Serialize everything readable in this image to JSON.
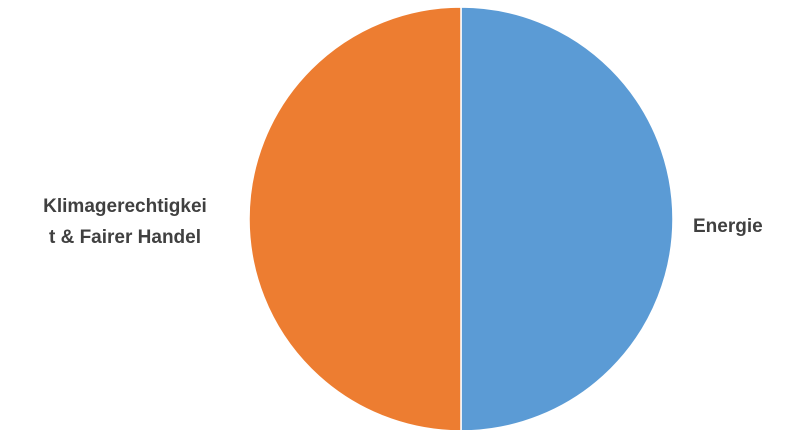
{
  "chart_data": {
    "type": "pie",
    "title": "",
    "categories": [
      "Energie",
      "Klimagerechtigkeit & Fairer Handel"
    ],
    "values": [
      50,
      50
    ],
    "colors": [
      "#5b9bd5",
      "#ed7d31"
    ],
    "labels": [
      {
        "lines": [
          "Energie"
        ]
      },
      {
        "lines": [
          "Klimagerechtigkei",
          "t & Fairer Handel"
        ]
      }
    ],
    "legend": "none",
    "start_angle_deg": 0,
    "direction": "clockwise",
    "label_position": "outside"
  }
}
